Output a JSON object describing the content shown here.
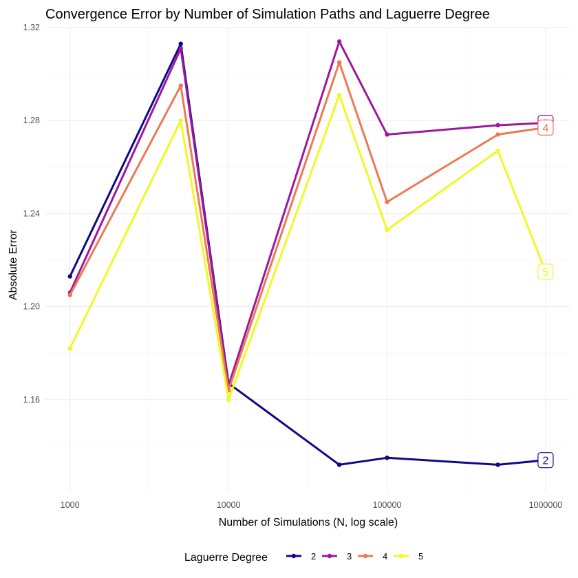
{
  "chart_data": {
    "type": "line",
    "title": "Convergence Error by Number of Simulation Paths and Laguerre Degree",
    "xlabel": "Number of Simulations (N, log scale)",
    "ylabel": "Absolute Error",
    "x_scale": "log10",
    "x": [
      1000,
      5000,
      10000,
      50000,
      100000,
      500000,
      1000000
    ],
    "x_ticks": [
      1000,
      10000,
      100000,
      1000000
    ],
    "x_tick_labels": [
      "1000",
      "10000",
      "100000",
      "1000000"
    ],
    "y_ticks": [
      1.16,
      1.2,
      1.24,
      1.28,
      1.32
    ],
    "y_tick_labels": [
      "1.16",
      "1.20",
      "1.24",
      "1.28",
      "1.32"
    ],
    "ylim": [
      1.12,
      1.32
    ],
    "grid": true,
    "legend_title": "Laguerre Degree",
    "legend_position": "bottom",
    "series": [
      {
        "name": "2",
        "color": "#0d0887",
        "values": [
          1.213,
          1.313,
          1.167,
          1.132,
          1.135,
          1.132,
          1.134
        ],
        "end_label": "2"
      },
      {
        "name": "3",
        "color": "#9c179e",
        "values": [
          1.206,
          1.311,
          1.166,
          1.314,
          1.274,
          1.278,
          1.279
        ],
        "end_label": "3"
      },
      {
        "name": "4",
        "color": "#ed7953",
        "values": [
          1.205,
          1.295,
          1.164,
          1.305,
          1.245,
          1.274,
          1.277
        ],
        "end_label": "4"
      },
      {
        "name": "5",
        "color": "#f0f921",
        "values": [
          1.182,
          1.28,
          1.16,
          1.291,
          1.233,
          1.267,
          1.215
        ],
        "end_label": "5"
      }
    ]
  }
}
